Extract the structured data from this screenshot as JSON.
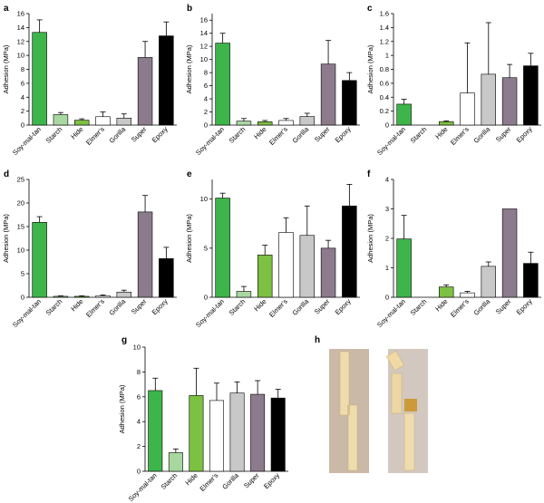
{
  "panel_h_label": "h",
  "categories_colors": {
    "Soy-mal-tan": "#3db54a",
    "Starch": "#a8d8a0",
    "Hide": "#7dc142",
    "Elmer's": "#ffffff",
    "Gorilla": "#c8c8c8",
    "Super": "#8c7b8c",
    "Epoxy": "#000000"
  },
  "chart_data": [
    {
      "type": "bar",
      "panel": "a",
      "ylabel": "Adhesion (MPa)",
      "categories": [
        "Soy-mal-tan",
        "Starch",
        "Hide",
        "Elmer's",
        "Gorilla",
        "Super",
        "Epoxy"
      ],
      "values": [
        13.3,
        1.5,
        0.7,
        1.2,
        1.0,
        9.7,
        12.8
      ],
      "errors": [
        1.8,
        0.3,
        0.2,
        0.7,
        0.6,
        2.3,
        2.0
      ],
      "ylim": [
        0,
        16
      ],
      "yticks": [
        0,
        2,
        4,
        6,
        8,
        10,
        12,
        14,
        16
      ]
    },
    {
      "type": "bar",
      "panel": "b",
      "ylabel": "Adhesion (MPa)",
      "categories": [
        "Soy-mal-tan",
        "Starch",
        "Hide",
        "Elmer's",
        "Gorilla",
        "Super",
        "Epoxy"
      ],
      "values": [
        12.5,
        0.6,
        0.5,
        0.7,
        1.3,
        9.3,
        6.8
      ],
      "errors": [
        1.5,
        0.4,
        0.2,
        0.3,
        0.5,
        3.6,
        1.2
      ],
      "ylim": [
        0,
        17
      ],
      "yticks": [
        0,
        2,
        4,
        6,
        8,
        10,
        12,
        14,
        16
      ]
    },
    {
      "type": "bar",
      "panel": "c",
      "ylabel": "Adhesion (MPa)",
      "categories": [
        "Soy-mal-tan",
        "Starch",
        "Hide",
        "Elmer's",
        "Gorilla",
        "Super",
        "Epoxy"
      ],
      "values": [
        0.3,
        0.0,
        0.05,
        0.46,
        0.73,
        0.68,
        0.85
      ],
      "errors": [
        0.07,
        0.0,
        0.01,
        0.72,
        0.74,
        0.19,
        0.18
      ],
      "ylim": [
        0,
        1.6
      ],
      "yticks": [
        0,
        0.2,
        0.4,
        0.6,
        0.8,
        1.0,
        1.2,
        1.4,
        1.6
      ]
    },
    {
      "type": "bar",
      "panel": "d",
      "ylabel": "Adhesion (MPa)",
      "categories": [
        "Soy-mal-tan",
        "Starch",
        "Hide",
        "Elmer's",
        "Gorilla",
        "Super",
        "Epoxy"
      ],
      "values": [
        15.9,
        0.2,
        0.2,
        0.3,
        1.1,
        18.1,
        8.2
      ],
      "errors": [
        1.2,
        0.1,
        0.1,
        0.2,
        0.4,
        3.5,
        2.4
      ],
      "ylim": [
        0,
        25
      ],
      "yticks": [
        0,
        5,
        10,
        15,
        20,
        25
      ]
    },
    {
      "type": "bar",
      "panel": "e",
      "ylabel": "Adhesion (MPa)",
      "categories": [
        "Soy-mal-tan",
        "Starch",
        "Hide",
        "Elmer's",
        "Gorilla",
        "Super",
        "Epoxy"
      ],
      "values": [
        10.1,
        0.6,
        4.3,
        6.6,
        6.3,
        5.0,
        9.3
      ],
      "errors": [
        0.5,
        0.5,
        1.0,
        1.5,
        3.0,
        0.8,
        2.2
      ],
      "ylim": [
        0,
        12
      ],
      "yticks": [
        0,
        5,
        10
      ]
    },
    {
      "type": "bar",
      "panel": "f",
      "ylabel": "Adhesion (MPa)",
      "categories": [
        "Soy-mal-tan",
        "Starch",
        "Hide",
        "Elmer's",
        "Gorilla",
        "Super",
        "Epoxy"
      ],
      "values": [
        1.98,
        0.0,
        0.35,
        0.15,
        1.05,
        3.0,
        1.15
      ],
      "errors": [
        0.8,
        0.0,
        0.07,
        0.05,
        0.15,
        0.0,
        0.38
      ],
      "ylim": [
        0,
        4
      ],
      "yticks": [
        0,
        1,
        2,
        3,
        4
      ]
    },
    {
      "type": "bar",
      "panel": "g",
      "ylabel": "Adhesion (MPa)",
      "categories": [
        "Soy-mal-tan",
        "Starch",
        "Hide",
        "Elmer's",
        "Gorilla",
        "Super",
        "Epoxy"
      ],
      "values": [
        6.5,
        1.5,
        6.1,
        5.7,
        6.3,
        6.2,
        5.9
      ],
      "errors": [
        1.0,
        0.3,
        2.2,
        1.4,
        0.9,
        1.1,
        0.7
      ],
      "ylim": [
        0,
        10
      ],
      "yticks": [
        0,
        2,
        4,
        6,
        8,
        10
      ]
    }
  ]
}
